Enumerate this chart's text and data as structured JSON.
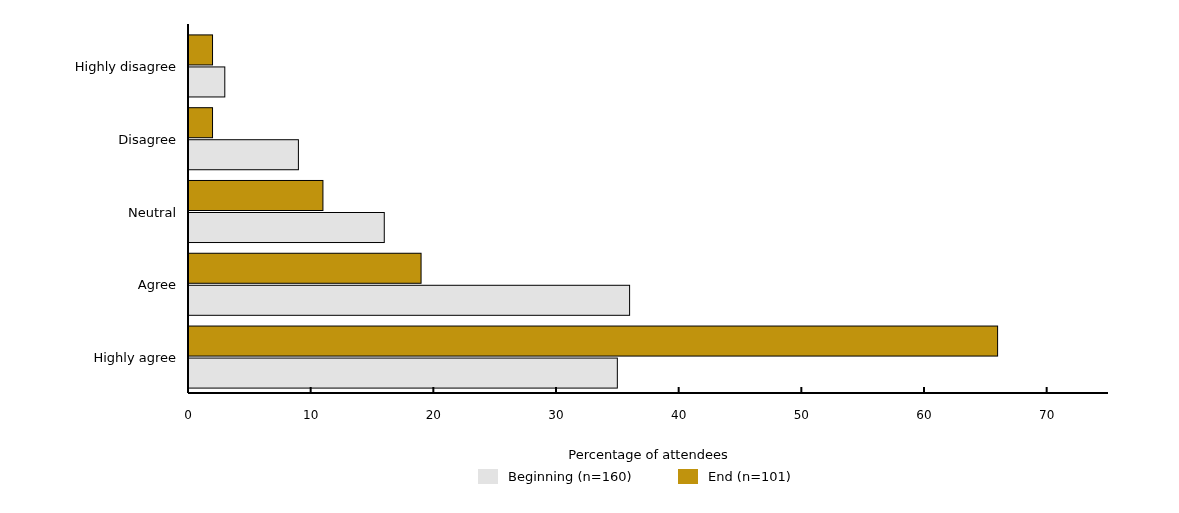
{
  "chart_data": {
    "type": "bar",
    "orientation": "horizontal",
    "xlabel": "Percentage of attendees",
    "categories": [
      "Highly disagree",
      "Disagree",
      "Neutral",
      "Agree",
      "Highly agree"
    ],
    "series": [
      {
        "name": "Beginning (n=160)",
        "color": "#e3e3e3",
        "values": [
          3,
          9,
          16,
          36,
          35
        ]
      },
      {
        "name": "End (n=101)",
        "color": "#c0930d",
        "values": [
          2,
          2,
          11,
          19,
          66
        ]
      }
    ],
    "xlim": [
      0,
      75
    ],
    "xticks": [
      0,
      10,
      20,
      30,
      40,
      50,
      60,
      70
    ],
    "grid": false,
    "legend": "bottom"
  }
}
